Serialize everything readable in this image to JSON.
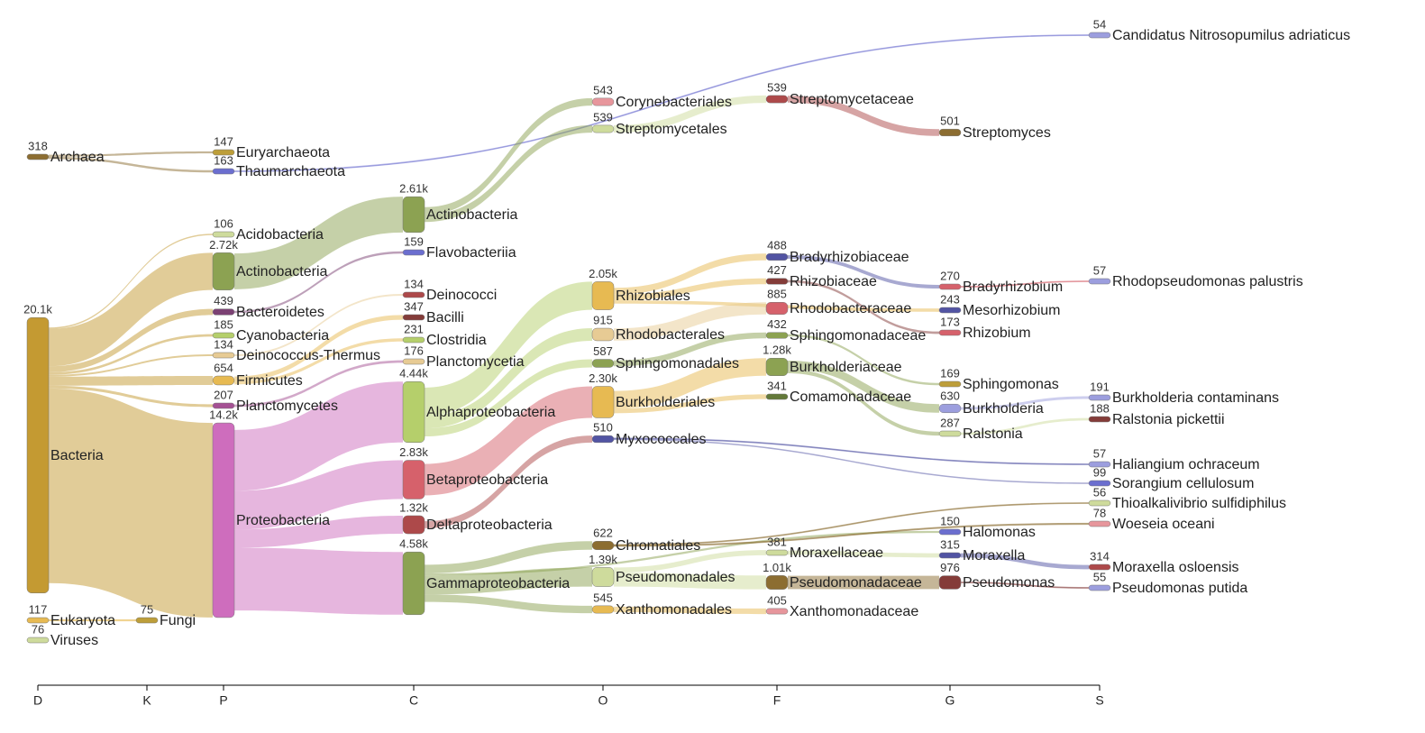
{
  "chart_data": {
    "type": "sankey",
    "ranks": [
      "D",
      "K",
      "P",
      "C",
      "O",
      "F",
      "G",
      "S"
    ],
    "nodes": [
      {
        "name": "Archaea",
        "value": 318,
        "rank": "D",
        "color": "#8c6d31",
        "children": [
          {
            "name": "Euryarchaeota",
            "value": 147,
            "rank": "P",
            "color": "#bd9e39"
          },
          {
            "name": "Thaumarchaeota",
            "value": 163,
            "rank": "P",
            "color": "#6b6ecf",
            "children": [
              {
                "name": "Candidatus Nitrosopumilus adriaticus",
                "value": 54,
                "rank": "S",
                "color": "#9c9ede"
              }
            ]
          }
        ]
      },
      {
        "name": "Bacteria",
        "value": 20100,
        "value_label": "20.1k",
        "rank": "D",
        "color": "#c49a32",
        "children": [
          {
            "name": "Acidobacteria",
            "value": 106,
            "rank": "P",
            "color": "#cedb9c"
          },
          {
            "name": "Actinobacteria",
            "value": 2720,
            "value_label": "2.72k",
            "rank": "P",
            "color": "#8ca252",
            "children": [
              {
                "name": "Actinobacteria",
                "value": 2610,
                "value_label": "2.61k",
                "rank": "C",
                "color": "#8ca252",
                "children": [
                  {
                    "name": "Corynebacteriales",
                    "value": 543,
                    "rank": "O",
                    "color": "#e7969c"
                  },
                  {
                    "name": "Streptomycetales",
                    "value": 539,
                    "rank": "O",
                    "color": "#cedb9c",
                    "children": [
                      {
                        "name": "Streptomycetaceae",
                        "value": 539,
                        "rank": "F",
                        "color": "#ad494a",
                        "children": [
                          {
                            "name": "Streptomyces",
                            "value": 501,
                            "rank": "G",
                            "color": "#8c6d31"
                          }
                        ]
                      }
                    ]
                  }
                ]
              }
            ]
          },
          {
            "name": "Bacteroidetes",
            "value": 439,
            "rank": "P",
            "color": "#7b4173",
            "children": [
              {
                "name": "Flavobacteriia",
                "value": 159,
                "rank": "C",
                "color": "#6b6ecf"
              }
            ]
          },
          {
            "name": "Cyanobacteria",
            "value": 185,
            "rank": "P",
            "color": "#b5cf6b"
          },
          {
            "name": "Deinococcus-Thermus",
            "value": 134,
            "rank": "P",
            "color": "#e7cb94",
            "children": [
              {
                "name": "Deinococci",
                "value": 134,
                "rank": "C",
                "color": "#ad494a"
              }
            ]
          },
          {
            "name": "Firmicutes",
            "value": 654,
            "rank": "P",
            "color": "#e7ba52",
            "children": [
              {
                "name": "Bacilli",
                "value": 347,
                "rank": "C",
                "color": "#843c39"
              },
              {
                "name": "Clostridia",
                "value": 231,
                "rank": "C",
                "color": "#b5cf6b"
              }
            ]
          },
          {
            "name": "Planctomycetes",
            "value": 207,
            "rank": "P",
            "color": "#a55194",
            "children": [
              {
                "name": "Planctomycetia",
                "value": 176,
                "rank": "C",
                "color": "#e7cb94"
              }
            ]
          },
          {
            "name": "Proteobacteria",
            "value": 14200,
            "value_label": "14.2k",
            "rank": "P",
            "color": "#ce6dbd",
            "children": [
              {
                "name": "Alphaproteobacteria",
                "value": 4440,
                "value_label": "4.44k",
                "rank": "C",
                "color": "#b5cf6b",
                "children": [
                  {
                    "name": "Rhizobiales",
                    "value": 2050,
                    "value_label": "2.05k",
                    "rank": "O",
                    "color": "#e7ba52",
                    "children": [
                      {
                        "name": "Bradyrhizobiaceae",
                        "value": 488,
                        "rank": "F",
                        "color": "#5254a3",
                        "children": [
                          {
                            "name": "Bradyrhizobium",
                            "value": 270,
                            "rank": "G",
                            "color": "#d6616b",
                            "children": [
                              {
                                "name": "Rhodopseudomonas palustris",
                                "value": 57,
                                "rank": "S",
                                "color": "#9c9ede"
                              }
                            ]
                          }
                        ]
                      },
                      {
                        "name": "Rhizobiaceae",
                        "value": 427,
                        "rank": "F",
                        "color": "#843c39",
                        "children": [
                          {
                            "name": "Rhizobium",
                            "value": 173,
                            "rank": "G",
                            "color": "#d6616b"
                          }
                        ]
                      },
                      {
                        "name": "Mesorhizobium",
                        "value": 243,
                        "rank": "G",
                        "color": "#5254a3"
                      }
                    ]
                  },
                  {
                    "name": "Rhodobacterales",
                    "value": 915,
                    "rank": "O",
                    "color": "#e7cb94",
                    "children": [
                      {
                        "name": "Rhodobacteraceae",
                        "value": 885,
                        "rank": "F",
                        "color": "#d6616b"
                      }
                    ]
                  },
                  {
                    "name": "Sphingomonadales",
                    "value": 587,
                    "rank": "O",
                    "color": "#8ca252",
                    "children": [
                      {
                        "name": "Sphingomonadaceae",
                        "value": 432,
                        "rank": "F",
                        "color": "#8ca252",
                        "children": [
                          {
                            "name": "Sphingomonas",
                            "value": 169,
                            "rank": "G",
                            "color": "#bd9e39"
                          }
                        ]
                      }
                    ]
                  }
                ]
              },
              {
                "name": "Betaproteobacteria",
                "value": 2830,
                "value_label": "2.83k",
                "rank": "C",
                "color": "#d6616b",
                "children": [
                  {
                    "name": "Burkholderiales",
                    "value": 2300,
                    "value_label": "2.30k",
                    "rank": "O",
                    "color": "#e7ba52",
                    "children": [
                      {
                        "name": "Burkholderiaceae",
                        "value": 1280,
                        "value_label": "1.28k",
                        "rank": "F",
                        "color": "#8ca252",
                        "children": [
                          {
                            "name": "Burkholderia",
                            "value": 630,
                            "rank": "G",
                            "color": "#9c9ede",
                            "children": [
                              {
                                "name": "Burkholderia contaminans",
                                "value": 191,
                                "rank": "S",
                                "color": "#9c9ede"
                              }
                            ]
                          },
                          {
                            "name": "Ralstonia",
                            "value": 287,
                            "rank": "G",
                            "color": "#cedb9c",
                            "children": [
                              {
                                "name": "Ralstonia pickettii",
                                "value": 188,
                                "rank": "S",
                                "color": "#843c39"
                              }
                            ]
                          }
                        ]
                      },
                      {
                        "name": "Comamonadaceae",
                        "value": 341,
                        "rank": "F",
                        "color": "#637939"
                      }
                    ]
                  }
                ]
              },
              {
                "name": "Deltaproteobacteria",
                "value": 1320,
                "value_label": "1.32k",
                "rank": "C",
                "color": "#ad494a",
                "children": [
                  {
                    "name": "Myxococcales",
                    "value": 510,
                    "rank": "O",
                    "color": "#5254a3",
                    "children": [
                      {
                        "name": "Haliangium ochraceum",
                        "value": 57,
                        "rank": "S",
                        "color": "#9c9ede"
                      },
                      {
                        "name": "Sorangium cellulosum",
                        "value": 99,
                        "rank": "S",
                        "color": "#6b6ecf"
                      }
                    ]
                  }
                ]
              },
              {
                "name": "Gammaproteobacteria",
                "value": 4580,
                "value_label": "4.58k",
                "rank": "C",
                "color": "#8ca252",
                "children": [
                  {
                    "name": "Chromatiales",
                    "value": 622,
                    "rank": "O",
                    "color": "#8c6d31",
                    "children": [
                      {
                        "name": "Thioalkalivibrio sulfidiphilus",
                        "value": 56,
                        "rank": "S",
                        "color": "#cedb9c"
                      },
                      {
                        "name": "Woeseia oceani",
                        "value": 78,
                        "rank": "S",
                        "color": "#e7969c"
                      }
                    ]
                  },
                  {
                    "name": "Halomonas",
                    "value": 150,
                    "rank": "G",
                    "color": "#6b6ecf"
                  },
                  {
                    "name": "Pseudomonadales",
                    "value": 1390,
                    "value_label": "1.39k",
                    "rank": "O",
                    "color": "#cedb9c",
                    "children": [
                      {
                        "name": "Moraxellaceae",
                        "value": 381,
                        "rank": "F",
                        "color": "#cedb9c",
                        "children": [
                          {
                            "name": "Moraxella",
                            "value": 315,
                            "rank": "G",
                            "color": "#5254a3",
                            "children": [
                              {
                                "name": "Moraxella osloensis",
                                "value": 314,
                                "rank": "S",
                                "color": "#ad494a"
                              }
                            ]
                          }
                        ]
                      },
                      {
                        "name": "Pseudomonadaceae",
                        "value": 1010,
                        "value_label": "1.01k",
                        "rank": "F",
                        "color": "#8c6d31",
                        "children": [
                          {
                            "name": "Pseudomonas",
                            "value": 976,
                            "rank": "G",
                            "color": "#843c39",
                            "children": [
                              {
                                "name": "Pseudomonas putida",
                                "value": 55,
                                "rank": "S",
                                "color": "#9c9ede"
                              }
                            ]
                          }
                        ]
                      }
                    ]
                  },
                  {
                    "name": "Xanthomonadales",
                    "value": 545,
                    "rank": "O",
                    "color": "#e7ba52",
                    "children": [
                      {
                        "name": "Xanthomonadaceae",
                        "value": 405,
                        "rank": "F",
                        "color": "#e7969c"
                      }
                    ]
                  }
                ]
              }
            ]
          }
        ]
      },
      {
        "name": "Eukaryota",
        "value": 117,
        "rank": "D",
        "color": "#e7ba52",
        "children": [
          {
            "name": "Fungi",
            "value": 75,
            "rank": "K",
            "color": "#bd9e39"
          }
        ]
      },
      {
        "name": "Viruses",
        "value": 76,
        "rank": "D",
        "color": "#cedb9c"
      }
    ]
  }
}
